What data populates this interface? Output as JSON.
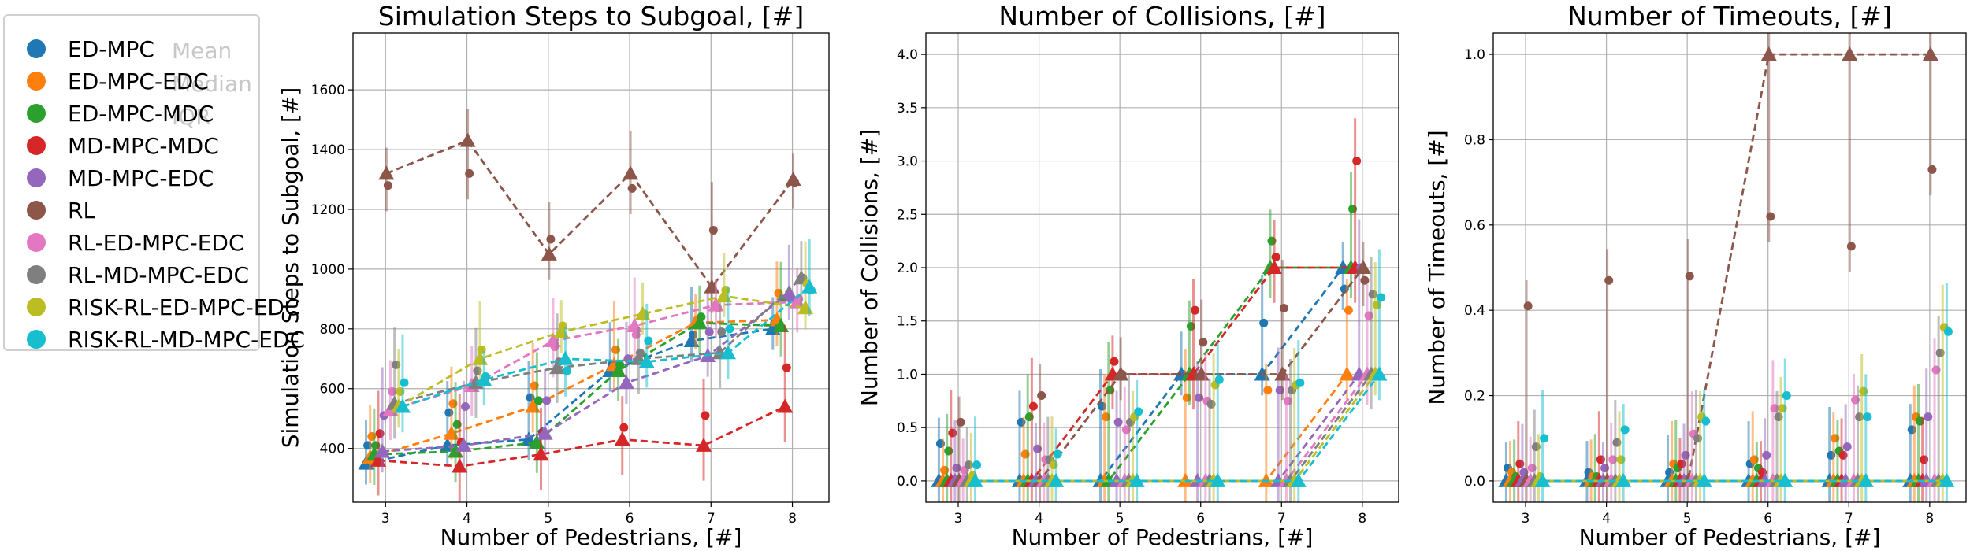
{
  "chart_data": [
    {
      "type": "line",
      "title": "Simulation Steps to Subgoal, [#]",
      "xlabel": "Number of Pedestrians, [#]",
      "ylabel": "Simulation Steps to Subgoal, [#]",
      "x": [
        3,
        4,
        5,
        6,
        7,
        8
      ],
      "xlim": [
        2.6,
        8.45
      ],
      "ylim": [
        220,
        1790
      ],
      "yticks": [
        400,
        600,
        800,
        1000,
        1200,
        1400,
        1600
      ],
      "ytick_labels": [
        "400",
        "600",
        "800",
        "1000",
        "1200",
        "1400",
        "1600"
      ],
      "grid": true,
      "series": [
        {
          "name": "ED-MPC",
          "median": [
            350,
            410,
            430,
            660,
            760,
            800
          ],
          "mean": [
            410,
            520,
            570,
            680,
            780,
            820
          ]
        },
        {
          "name": "ED-MPC-EDC",
          "median": [
            370,
            450,
            540,
            680,
            820,
            830
          ],
          "mean": [
            440,
            550,
            610,
            730,
            830,
            920
          ]
        },
        {
          "name": "ED-MPC-MDC",
          "median": [
            380,
            390,
            420,
            660,
            820,
            810
          ],
          "mean": [
            410,
            480,
            560,
            680,
            840,
            900
          ]
        },
        {
          "name": "MD-MPC-MDC",
          "median": [
            360,
            340,
            380,
            430,
            410,
            540
          ],
          "mean": [
            450,
            420,
            450,
            470,
            510,
            670
          ]
        },
        {
          "name": "MD-MPC-EDC",
          "median": [
            390,
            410,
            450,
            620,
            710,
            920
          ],
          "mean": [
            510,
            540,
            560,
            700,
            790,
            900
          ]
        },
        {
          "name": "RL",
          "median": [
            1320,
            1430,
            1050,
            1320,
            940,
            1300
          ],
          "mean": [
            1280,
            1320,
            1100,
            1270,
            1130,
            1290
          ]
        },
        {
          "name": "RL-ED-MPC-EDC",
          "median": [
            530,
            610,
            760,
            810,
            880,
            890
          ],
          "mean": [
            590,
            620,
            740,
            780,
            870,
            900
          ]
        },
        {
          "name": "RL-MD-MPC-EDC",
          "median": [
            550,
            620,
            670,
            700,
            720,
            970
          ],
          "mean": [
            680,
            660,
            690,
            720,
            790,
            970
          ]
        },
        {
          "name": "RISK-RL-ED-MPC-EDC",
          "median": [
            540,
            700,
            790,
            850,
            910,
            870
          ],
          "mean": [
            590,
            730,
            810,
            850,
            930,
            950
          ]
        },
        {
          "name": "RISK-RL-MD-MPC-EDC",
          "median": [
            540,
            630,
            700,
            690,
            720,
            940
          ],
          "mean": [
            620,
            640,
            660,
            760,
            800,
            930
          ]
        }
      ]
    },
    {
      "type": "line",
      "title": "Number of Collisions, [#]",
      "xlabel": "Number of Pedestrians, [#]",
      "ylabel": "Number of Collisions, [#]",
      "x": [
        3,
        4,
        5,
        6,
        7,
        8
      ],
      "xlim": [
        2.6,
        8.45
      ],
      "ylim": [
        -0.2,
        4.2
      ],
      "yticks": [
        0,
        0.5,
        1,
        1.5,
        2,
        2.5,
        3,
        3.5,
        4
      ],
      "ytick_labels": [
        "0.0",
        "0.5",
        "1.0",
        "1.5",
        "2.0",
        "2.5",
        "3.0",
        "3.5",
        "4.0"
      ],
      "grid": true,
      "series": [
        {
          "name": "ED-MPC",
          "median": [
            0,
            0,
            0,
            1,
            1,
            2
          ],
          "mean": [
            0.35,
            0.55,
            0.7,
            1.0,
            1.48,
            1.8
          ]
        },
        {
          "name": "ED-MPC-EDC",
          "median": [
            0,
            0,
            0,
            0,
            0,
            1
          ],
          "mean": [
            0.1,
            0.25,
            0.6,
            0.78,
            0.85,
            1.6
          ]
        },
        {
          "name": "ED-MPC-MDC",
          "median": [
            0,
            0,
            0,
            1,
            2,
            2
          ],
          "mean": [
            0.28,
            0.6,
            0.85,
            1.45,
            2.25,
            2.55
          ]
        },
        {
          "name": "MD-MPC-MDC",
          "median": [
            0,
            0,
            1,
            1,
            2,
            2
          ],
          "mean": [
            0.45,
            0.7,
            1.12,
            1.6,
            2.1,
            3.0
          ]
        },
        {
          "name": "MD-MPC-EDC",
          "median": [
            0,
            0,
            0,
            0,
            0,
            1
          ],
          "mean": [
            0.12,
            0.3,
            0.55,
            0.78,
            0.85,
            2.0
          ]
        },
        {
          "name": "RL",
          "median": [
            0,
            0,
            1,
            1,
            1,
            2
          ],
          "mean": [
            0.55,
            0.8,
            1.0,
            1.3,
            1.62,
            1.88
          ]
        },
        {
          "name": "RL-ED-MPC-EDC",
          "median": [
            0,
            0,
            0,
            0,
            0,
            1
          ],
          "mean": [
            0.1,
            0.2,
            0.48,
            0.75,
            0.75,
            1.55
          ]
        },
        {
          "name": "RL-MD-MPC-EDC",
          "median": [
            0,
            0,
            0,
            0,
            0,
            1
          ],
          "mean": [
            0.15,
            0.2,
            0.55,
            0.72,
            0.85,
            1.75
          ]
        },
        {
          "name": "RISK-RL-ED-MPC-EDC",
          "median": [
            0,
            0,
            0,
            0,
            0,
            1
          ],
          "mean": [
            0.05,
            0.15,
            0.6,
            0.9,
            0.9,
            1.65
          ]
        },
        {
          "name": "RISK-RL-MD-MPC-EDC",
          "median": [
            0,
            0,
            0,
            0,
            0,
            1
          ],
          "mean": [
            0.15,
            0.25,
            0.65,
            0.95,
            0.92,
            1.72
          ]
        }
      ]
    },
    {
      "type": "line",
      "title": "Number of Timeouts, [#]",
      "xlabel": "Number of Pedestrians, [#]",
      "ylabel": "Number of Timeouts, [#]",
      "x": [
        3,
        4,
        5,
        6,
        7,
        8
      ],
      "xlim": [
        2.6,
        8.45
      ],
      "ylim": [
        -0.05,
        1.05
      ],
      "yticks": [
        0,
        0.2,
        0.4,
        0.6,
        0.8,
        1.0
      ],
      "ytick_labels": [
        "0.0",
        "0.2",
        "0.4",
        "0.6",
        "0.8",
        "1.0"
      ],
      "grid": true,
      "series": [
        {
          "name": "ED-MPC",
          "median": [
            0,
            0,
            0,
            0,
            0,
            0
          ],
          "mean": [
            0.03,
            0.02,
            0.02,
            0.04,
            0.06,
            0.12
          ]
        },
        {
          "name": "ED-MPC-EDC",
          "median": [
            0,
            0,
            0,
            0,
            0,
            0
          ],
          "mean": [
            0.02,
            0.01,
            0.04,
            0.05,
            0.1,
            0.15
          ]
        },
        {
          "name": "ED-MPC-MDC",
          "median": [
            0,
            0,
            0,
            0,
            0,
            0
          ],
          "mean": [
            0.01,
            0.01,
            0.03,
            0.03,
            0.07,
            0.14
          ]
        },
        {
          "name": "MD-MPC-MDC",
          "median": [
            0,
            0,
            0,
            0,
            0,
            0
          ],
          "mean": [
            0.04,
            0.05,
            0.04,
            0.02,
            0.06,
            0.05
          ]
        },
        {
          "name": "MD-MPC-EDC",
          "median": [
            0,
            0,
            0,
            0,
            0,
            0
          ],
          "mean": [
            0.02,
            0.03,
            0.06,
            0.06,
            0.08,
            0.15
          ]
        },
        {
          "name": "RL",
          "median": [
            0,
            0,
            0,
            1,
            1,
            1
          ],
          "mean": [
            0.41,
            0.47,
            0.48,
            0.62,
            0.55,
            0.73
          ]
        },
        {
          "name": "RL-ED-MPC-EDC",
          "median": [
            0,
            0,
            0,
            0,
            0,
            0
          ],
          "mean": [
            0.03,
            0.05,
            0.11,
            0.17,
            0.19,
            0.26
          ]
        },
        {
          "name": "RL-MD-MPC-EDC",
          "median": [
            0,
            0,
            0,
            0,
            0,
            0
          ],
          "mean": [
            0.08,
            0.09,
            0.1,
            0.15,
            0.15,
            0.3
          ]
        },
        {
          "name": "RISK-RL-ED-MPC-EDC",
          "median": [
            0,
            0,
            0,
            0,
            0,
            0
          ],
          "mean": [
            0.01,
            0.05,
            0.15,
            0.17,
            0.21,
            0.36
          ]
        },
        {
          "name": "RISK-RL-MD-MPC-EDC",
          "median": [
            0,
            0,
            0,
            0,
            0,
            0
          ],
          "mean": [
            0.1,
            0.12,
            0.14,
            0.2,
            0.15,
            0.35
          ]
        }
      ]
    }
  ],
  "colors": [
    "#1f77b4",
    "#ff7f0e",
    "#2ca02c",
    "#d62728",
    "#9467bd",
    "#8c564b",
    "#e377c2",
    "#7f7f7f",
    "#bcbd22",
    "#17becf"
  ],
  "legend": {
    "placement": "outside-left",
    "items": [
      "ED-MPC",
      "ED-MPC-EDC",
      "ED-MPC-MDC",
      "MD-MPC-MDC",
      "MD-MPC-EDC",
      "RL",
      "RL-ED-MPC-EDC",
      "RL-MD-MPC-EDC",
      "RISK-RL-ED-MPC-EDC",
      "RISK-RL-MD-MPC-EDC"
    ],
    "stat_labels": [
      "Mean",
      "Median",
      "IQR"
    ]
  }
}
